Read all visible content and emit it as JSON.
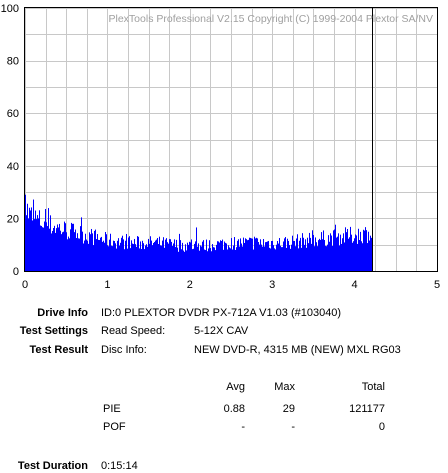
{
  "chart_data": {
    "type": "bar",
    "title": "PlexTools Professional V2.15 Copyright (C) 1999-2004 Plextor SA/NV",
    "xlim": [
      0,
      5
    ],
    "ylim": [
      0,
      100
    ],
    "x_ticks": [
      "0",
      "1",
      "2",
      "3",
      "4",
      "5"
    ],
    "y_ticks": [
      "0",
      "20",
      "40",
      "60",
      "80",
      "100"
    ],
    "grid": true,
    "end_marker_x": 4.21,
    "series": [
      {
        "name": "PIE",
        "color": "#0000ff",
        "x_start": 0,
        "x_end": 4.21,
        "max": 29,
        "baseline": [
          [
            0.0,
            26
          ],
          [
            0.05,
            22
          ],
          [
            0.15,
            20
          ],
          [
            0.3,
            18
          ],
          [
            0.5,
            16
          ],
          [
            0.75,
            14
          ],
          [
            1.0,
            12
          ],
          [
            1.3,
            11
          ],
          [
            1.6,
            11
          ],
          [
            1.9,
            10
          ],
          [
            2.2,
            10
          ],
          [
            2.5,
            11
          ],
          [
            2.8,
            11
          ],
          [
            3.1,
            11
          ],
          [
            3.4,
            12
          ],
          [
            3.7,
            13
          ],
          [
            4.0,
            14
          ],
          [
            4.21,
            15
          ]
        ]
      }
    ]
  },
  "colors": {
    "bars": "#0000ff",
    "grid": "#c8c8c8",
    "axis": "#000000",
    "title": "#a0a0a0"
  },
  "info": {
    "drive_label": "Drive Info",
    "drive_value": "ID:0 PLEXTOR DVDR PX-712A V1.03 (#103040)",
    "settings_label": "Test Settings",
    "speed_label": "Read Speed:",
    "speed_value": "5-12X CAV",
    "result_label": "Test Result",
    "disc_label": "Disc Info:",
    "disc_value": "NEW DVD-R, 4315 MB (NEW) MXL RG03"
  },
  "stats": {
    "headers": {
      "avg": "Avg",
      "max": "Max",
      "total": "Total"
    },
    "rows": [
      {
        "name": "PIE",
        "avg": "0.88",
        "max": "29",
        "total": "121177"
      },
      {
        "name": "POF",
        "avg": "-",
        "max": "-",
        "total": "0"
      }
    ]
  },
  "duration": {
    "label": "Test Duration",
    "value": "0:15:14"
  }
}
